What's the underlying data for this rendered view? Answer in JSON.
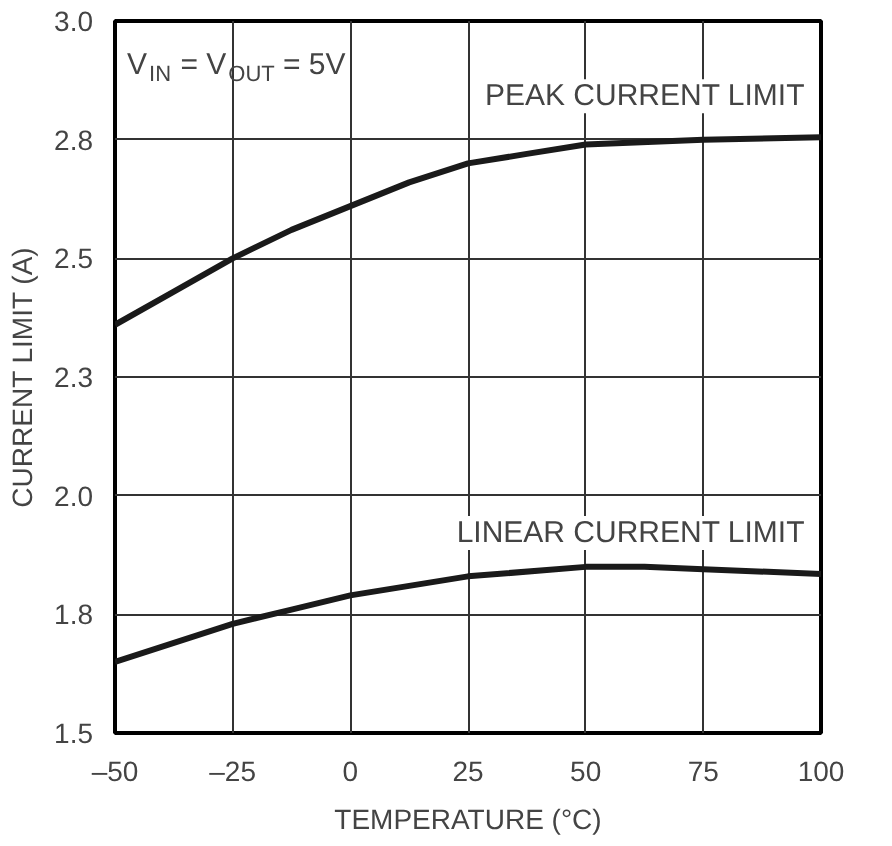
{
  "chart_data": {
    "type": "line",
    "xlabel": "TEMPERATURE (°C)",
    "ylabel": "CURRENT LIMIT (A)",
    "xlim": [
      -50,
      100
    ],
    "ylim": [
      1.5,
      3.0
    ],
    "xticks": [
      {
        "value": -50,
        "label": "–50"
      },
      {
        "value": -25,
        "label": "–25"
      },
      0,
      25,
      50,
      75,
      100
    ],
    "yticks": [
      {
        "value": 1.5,
        "label": "1.5"
      },
      {
        "value": 1.75,
        "label": "1.8"
      },
      {
        "value": 2.0,
        "label": "2.0"
      },
      {
        "value": 2.25,
        "label": "2.3"
      },
      {
        "value": 2.5,
        "label": "2.5"
      },
      {
        "value": 2.75,
        "label": "2.8"
      },
      {
        "value": 3.0,
        "label": "3.0"
      }
    ],
    "grid": true,
    "legend": false,
    "line_style": "solid",
    "marker": "none",
    "annotations": [
      "V$_{IN}$ = V$_{OUT}$ = 5V"
    ],
    "series": [
      {
        "name": "PEAK CURRENT LIMIT",
        "color": "#1a1a1a",
        "x": [
          -50,
          -37.5,
          -25,
          -12.5,
          0,
          12.5,
          25,
          37.5,
          50,
          75,
          100
        ],
        "values": [
          2.36,
          2.43,
          2.5,
          2.56,
          2.61,
          2.66,
          2.7,
          2.72,
          2.74,
          2.75,
          2.755
        ]
      },
      {
        "name": "LINEAR CURRENT LIMIT",
        "color": "#1a1a1a",
        "x": [
          -50,
          -25,
          -12.5,
          0,
          12.5,
          25,
          50,
          62.5,
          75,
          100
        ],
        "values": [
          1.65,
          1.73,
          1.76,
          1.79,
          1.81,
          1.83,
          1.85,
          1.85,
          1.845,
          1.835
        ]
      }
    ]
  }
}
